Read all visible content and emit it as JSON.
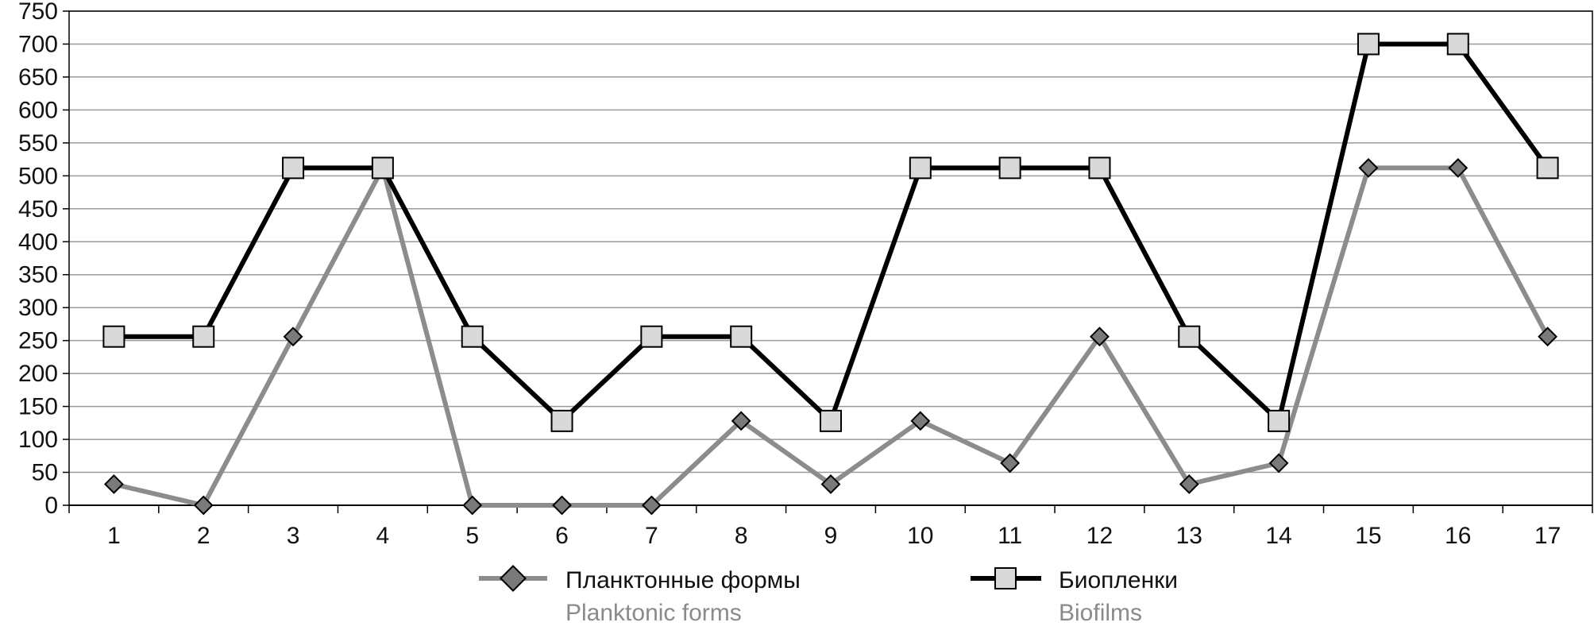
{
  "chart_data": {
    "type": "line",
    "categories": [
      "1",
      "2",
      "3",
      "4",
      "5",
      "6",
      "7",
      "8",
      "9",
      "10",
      "11",
      "12",
      "13",
      "14",
      "15",
      "16",
      "17"
    ],
    "ylim": [
      0,
      750
    ],
    "yticks": [
      0,
      50,
      100,
      150,
      200,
      250,
      300,
      350,
      400,
      450,
      500,
      550,
      600,
      650,
      700,
      750
    ],
    "grid": true,
    "legend_position": "bottom",
    "series": [
      {
        "name": "Планктонные формы",
        "name_en": "Planktonic forms",
        "color": "#8c8c8c",
        "marker": "diamond",
        "marker_fill": "#7a7a7a",
        "values": [
          32,
          0,
          256,
          512,
          0,
          0,
          0,
          128,
          32,
          128,
          64,
          256,
          32,
          64,
          512,
          512,
          256
        ]
      },
      {
        "name": "Биопленки",
        "name_en": "Biofilms",
        "color": "#000000",
        "marker": "square",
        "marker_fill": "#d9d9d9",
        "values": [
          256,
          256,
          512,
          512,
          256,
          128,
          256,
          256,
          128,
          512,
          512,
          512,
          256,
          128,
          700,
          700,
          512
        ]
      }
    ]
  }
}
